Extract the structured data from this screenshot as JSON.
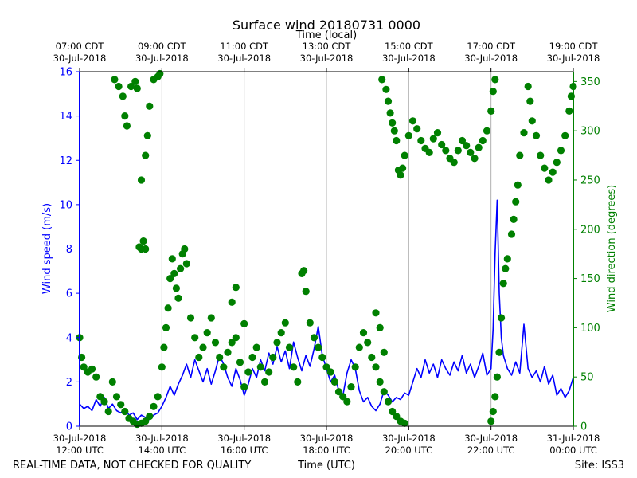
{
  "chart_data": {
    "type": "line+scatter",
    "title": "Surface wind 20180731 0000",
    "top_axis_label": "Time (local)",
    "x_label": "Time (UTC)",
    "footer_left": "REAL-TIME DATA, NOT CHECKED FOR QUALITY",
    "footer_right": "Site: ISS3",
    "x_range_hours": [
      0,
      12
    ],
    "bottom_ticks": [
      {
        "h": 0,
        "line1": "30-Jul-2018",
        "line2": "12:00 UTC"
      },
      {
        "h": 2,
        "line1": "30-Jul-2018",
        "line2": "14:00 UTC"
      },
      {
        "h": 4,
        "line1": "30-Jul-2018",
        "line2": "16:00 UTC"
      },
      {
        "h": 6,
        "line1": "30-Jul-2018",
        "line2": "18:00 UTC"
      },
      {
        "h": 8,
        "line1": "30-Jul-2018",
        "line2": "20:00 UTC"
      },
      {
        "h": 10,
        "line1": "30-Jul-2018",
        "line2": "22:00 UTC"
      },
      {
        "h": 12,
        "line1": "31-Jul-2018",
        "line2": "00:00 UTC"
      }
    ],
    "top_ticks": [
      {
        "h": 0,
        "line1": "07:00 CDT",
        "line2": "30-Jul-2018"
      },
      {
        "h": 2,
        "line1": "09:00 CDT",
        "line2": "30-Jul-2018"
      },
      {
        "h": 4,
        "line1": "11:00 CDT",
        "line2": "30-Jul-2018"
      },
      {
        "h": 6,
        "line1": "13:00 CDT",
        "line2": "30-Jul-2018"
      },
      {
        "h": 8,
        "line1": "15:00 CDT",
        "line2": "30-Jul-2018"
      },
      {
        "h": 10,
        "line1": "17:00 CDT",
        "line2": "30-Jul-2018"
      },
      {
        "h": 12,
        "line1": "19:00 CDT",
        "line2": "30-Jul-2018"
      }
    ],
    "left_axis": {
      "label": "Wind speed (m/s)",
      "ylim": [
        0,
        16
      ],
      "ticks": [
        0,
        2,
        4,
        6,
        8,
        10,
        12,
        14,
        16
      ],
      "color": "#0000ff"
    },
    "right_axis": {
      "label": "Wind direction (degrees)",
      "ylim": [
        0,
        360
      ],
      "ticks": [
        0,
        50,
        100,
        150,
        200,
        250,
        300,
        350
      ],
      "color": "#008000"
    },
    "grid_x": true,
    "series": [
      {
        "name": "Wind speed",
        "axis": "left",
        "style": "line",
        "color": "#0000ff",
        "points": [
          [
            0.0,
            1.0
          ],
          [
            0.1,
            0.8
          ],
          [
            0.2,
            0.9
          ],
          [
            0.3,
            0.7
          ],
          [
            0.4,
            1.2
          ],
          [
            0.5,
            0.9
          ],
          [
            0.6,
            1.3
          ],
          [
            0.7,
            0.8
          ],
          [
            0.8,
            1.0
          ],
          [
            0.9,
            0.7
          ],
          [
            1.0,
            0.6
          ],
          [
            1.1,
            0.8
          ],
          [
            1.2,
            0.5
          ],
          [
            1.3,
            0.6
          ],
          [
            1.4,
            0.3
          ],
          [
            1.5,
            0.5
          ],
          [
            1.6,
            0.4
          ],
          [
            1.7,
            0.3
          ],
          [
            1.8,
            0.5
          ],
          [
            1.9,
            0.6
          ],
          [
            2.0,
            0.9
          ],
          [
            2.1,
            1.3
          ],
          [
            2.2,
            1.8
          ],
          [
            2.3,
            1.4
          ],
          [
            2.4,
            1.9
          ],
          [
            2.5,
            2.3
          ],
          [
            2.6,
            2.8
          ],
          [
            2.7,
            2.2
          ],
          [
            2.8,
            3.0
          ],
          [
            2.9,
            2.5
          ],
          [
            3.0,
            2.0
          ],
          [
            3.1,
            2.6
          ],
          [
            3.2,
            1.9
          ],
          [
            3.3,
            2.5
          ],
          [
            3.4,
            3.2
          ],
          [
            3.5,
            2.8
          ],
          [
            3.6,
            2.2
          ],
          [
            3.7,
            1.8
          ],
          [
            3.8,
            2.6
          ],
          [
            3.9,
            2.1
          ],
          [
            4.0,
            1.4
          ],
          [
            4.1,
            1.9
          ],
          [
            4.2,
            2.6
          ],
          [
            4.3,
            2.2
          ],
          [
            4.4,
            3.0
          ],
          [
            4.5,
            2.5
          ],
          [
            4.6,
            3.3
          ],
          [
            4.7,
            2.8
          ],
          [
            4.8,
            3.6
          ],
          [
            4.9,
            2.9
          ],
          [
            5.0,
            3.4
          ],
          [
            5.1,
            2.6
          ],
          [
            5.2,
            3.8
          ],
          [
            5.3,
            3.1
          ],
          [
            5.4,
            2.5
          ],
          [
            5.5,
            3.2
          ],
          [
            5.6,
            2.7
          ],
          [
            5.7,
            3.5
          ],
          [
            5.8,
            4.5
          ],
          [
            5.9,
            3.2
          ],
          [
            6.0,
            2.6
          ],
          [
            6.1,
            2.0
          ],
          [
            6.2,
            2.3
          ],
          [
            6.3,
            1.6
          ],
          [
            6.4,
            1.4
          ],
          [
            6.5,
            2.4
          ],
          [
            6.6,
            3.0
          ],
          [
            6.7,
            2.6
          ],
          [
            6.8,
            1.6
          ],
          [
            6.9,
            1.1
          ],
          [
            7.0,
            1.3
          ],
          [
            7.1,
            0.9
          ],
          [
            7.2,
            0.7
          ],
          [
            7.3,
            1.0
          ],
          [
            7.4,
            1.6
          ],
          [
            7.5,
            1.4
          ],
          [
            7.6,
            1.1
          ],
          [
            7.7,
            1.3
          ],
          [
            7.8,
            1.2
          ],
          [
            7.9,
            1.5
          ],
          [
            8.0,
            1.4
          ],
          [
            8.1,
            2.0
          ],
          [
            8.2,
            2.6
          ],
          [
            8.3,
            2.2
          ],
          [
            8.4,
            3.0
          ],
          [
            8.5,
            2.4
          ],
          [
            8.6,
            2.8
          ],
          [
            8.7,
            2.2
          ],
          [
            8.8,
            3.0
          ],
          [
            8.9,
            2.6
          ],
          [
            9.0,
            2.3
          ],
          [
            9.1,
            2.9
          ],
          [
            9.2,
            2.5
          ],
          [
            9.3,
            3.2
          ],
          [
            9.4,
            2.4
          ],
          [
            9.5,
            2.8
          ],
          [
            9.6,
            2.2
          ],
          [
            9.7,
            2.7
          ],
          [
            9.8,
            3.3
          ],
          [
            9.9,
            2.3
          ],
          [
            10.0,
            2.6
          ],
          [
            10.05,
            4.4
          ],
          [
            10.1,
            7.8
          ],
          [
            10.15,
            10.2
          ],
          [
            10.2,
            6.0
          ],
          [
            10.25,
            4.0
          ],
          [
            10.3,
            3.2
          ],
          [
            10.4,
            2.6
          ],
          [
            10.5,
            2.3
          ],
          [
            10.6,
            2.9
          ],
          [
            10.7,
            2.4
          ],
          [
            10.8,
            4.6
          ],
          [
            10.9,
            2.6
          ],
          [
            11.0,
            2.2
          ],
          [
            11.1,
            2.5
          ],
          [
            11.2,
            2.0
          ],
          [
            11.3,
            2.7
          ],
          [
            11.4,
            1.9
          ],
          [
            11.5,
            2.3
          ],
          [
            11.6,
            1.4
          ],
          [
            11.7,
            1.7
          ],
          [
            11.8,
            1.3
          ],
          [
            11.9,
            1.6
          ],
          [
            12.0,
            2.2
          ]
        ]
      },
      {
        "name": "Wind direction",
        "axis": "right",
        "style": "markers",
        "color": "#008000",
        "points": [
          [
            0.0,
            90
          ],
          [
            0.05,
            70
          ],
          [
            0.1,
            60
          ],
          [
            0.2,
            55
          ],
          [
            0.3,
            58
          ],
          [
            0.4,
            50
          ],
          [
            0.5,
            30
          ],
          [
            0.6,
            25
          ],
          [
            0.7,
            15
          ],
          [
            0.8,
            45
          ],
          [
            0.9,
            30
          ],
          [
            1.0,
            22
          ],
          [
            1.1,
            15
          ],
          [
            1.2,
            8
          ],
          [
            1.3,
            5
          ],
          [
            1.4,
            2
          ],
          [
            1.5,
            3
          ],
          [
            1.6,
            5
          ],
          [
            1.7,
            10
          ],
          [
            1.8,
            20
          ],
          [
            1.9,
            30
          ],
          [
            0.85,
            352
          ],
          [
            0.95,
            345
          ],
          [
            1.05,
            335
          ],
          [
            1.1,
            315
          ],
          [
            1.15,
            305
          ],
          [
            1.25,
            345
          ],
          [
            1.45,
            182
          ],
          [
            1.5,
            180
          ],
          [
            1.55,
            188
          ],
          [
            1.6,
            180
          ],
          [
            1.35,
            350
          ],
          [
            1.4,
            343
          ],
          [
            1.5,
            250
          ],
          [
            1.6,
            275
          ],
          [
            1.65,
            295
          ],
          [
            1.7,
            325
          ],
          [
            1.8,
            352
          ],
          [
            1.9,
            355
          ],
          [
            1.95,
            358
          ],
          [
            2.0,
            60
          ],
          [
            2.05,
            80
          ],
          [
            2.1,
            100
          ],
          [
            2.15,
            120
          ],
          [
            2.2,
            150
          ],
          [
            2.25,
            170
          ],
          [
            2.3,
            155
          ],
          [
            2.35,
            140
          ],
          [
            2.4,
            130
          ],
          [
            2.45,
            160
          ],
          [
            2.5,
            175
          ],
          [
            2.55,
            180
          ],
          [
            2.6,
            165
          ],
          [
            2.7,
            110
          ],
          [
            2.8,
            90
          ],
          [
            2.9,
            70
          ],
          [
            3.0,
            80
          ],
          [
            3.1,
            95
          ],
          [
            3.2,
            110
          ],
          [
            3.3,
            85
          ],
          [
            3.4,
            70
          ],
          [
            3.5,
            60
          ],
          [
            3.6,
            75
          ],
          [
            3.7,
            85
          ],
          [
            3.8,
            90
          ],
          [
            3.9,
            65
          ],
          [
            4.0,
            40
          ],
          [
            4.1,
            55
          ],
          [
            4.2,
            70
          ],
          [
            4.3,
            80
          ],
          [
            4.4,
            60
          ],
          [
            4.5,
            45
          ],
          [
            4.6,
            55
          ],
          [
            4.7,
            70
          ],
          [
            4.8,
            85
          ],
          [
            4.9,
            95
          ],
          [
            5.0,
            105
          ],
          [
            5.1,
            80
          ],
          [
            5.2,
            60
          ],
          [
            5.3,
            45
          ],
          [
            5.4,
            155
          ],
          [
            5.45,
            158
          ],
          [
            5.5,
            137
          ],
          [
            5.6,
            105
          ],
          [
            5.7,
            90
          ],
          [
            5.8,
            80
          ],
          [
            5.9,
            70
          ],
          [
            6.0,
            60
          ],
          [
            6.1,
            55
          ],
          [
            6.2,
            45
          ],
          [
            6.3,
            35
          ],
          [
            6.4,
            30
          ],
          [
            6.5,
            25
          ],
          [
            6.6,
            40
          ],
          [
            6.7,
            60
          ],
          [
            6.8,
            80
          ],
          [
            6.9,
            95
          ],
          [
            7.0,
            85
          ],
          [
            7.1,
            70
          ],
          [
            7.2,
            60
          ],
          [
            7.3,
            45
          ],
          [
            7.4,
            35
          ],
          [
            7.5,
            25
          ],
          [
            7.6,
            15
          ],
          [
            7.7,
            10
          ],
          [
            7.8,
            5
          ],
          [
            7.9,
            3
          ],
          [
            7.2,
            115
          ],
          [
            7.3,
            100
          ],
          [
            7.4,
            75
          ],
          [
            4.0,
            104
          ],
          [
            3.8,
            141
          ],
          [
            3.7,
            126
          ],
          [
            7.35,
            352
          ],
          [
            7.45,
            342
          ],
          [
            7.5,
            330
          ],
          [
            7.55,
            318
          ],
          [
            7.6,
            308
          ],
          [
            7.65,
            300
          ],
          [
            7.7,
            290
          ],
          [
            7.75,
            260
          ],
          [
            7.8,
            255
          ],
          [
            7.85,
            262
          ],
          [
            7.9,
            275
          ],
          [
            8.0,
            295
          ],
          [
            8.1,
            310
          ],
          [
            8.2,
            302
          ],
          [
            8.3,
            290
          ],
          [
            8.4,
            282
          ],
          [
            8.5,
            278
          ],
          [
            8.6,
            292
          ],
          [
            8.7,
            298
          ],
          [
            8.8,
            286
          ],
          [
            8.9,
            280
          ],
          [
            9.0,
            272
          ],
          [
            9.1,
            268
          ],
          [
            9.2,
            280
          ],
          [
            9.3,
            290
          ],
          [
            9.4,
            285
          ],
          [
            9.5,
            278
          ],
          [
            9.6,
            272
          ],
          [
            9.7,
            283
          ],
          [
            9.8,
            290
          ],
          [
            9.9,
            300
          ],
          [
            10.0,
            320
          ],
          [
            10.05,
            340
          ],
          [
            10.1,
            352
          ],
          [
            10.0,
            5
          ],
          [
            10.05,
            15
          ],
          [
            10.1,
            30
          ],
          [
            10.15,
            50
          ],
          [
            10.2,
            75
          ],
          [
            10.25,
            110
          ],
          [
            10.3,
            145
          ],
          [
            10.35,
            160
          ],
          [
            10.4,
            170
          ],
          [
            10.5,
            195
          ],
          [
            10.55,
            210
          ],
          [
            10.6,
            228
          ],
          [
            10.65,
            245
          ],
          [
            10.7,
            275
          ],
          [
            10.8,
            298
          ],
          [
            10.9,
            345
          ],
          [
            10.95,
            330
          ],
          [
            11.0,
            310
          ],
          [
            11.1,
            295
          ],
          [
            11.2,
            275
          ],
          [
            11.3,
            262
          ],
          [
            11.4,
            250
          ],
          [
            11.5,
            258
          ],
          [
            11.6,
            268
          ],
          [
            11.7,
            280
          ],
          [
            11.8,
            295
          ],
          [
            11.9,
            320
          ],
          [
            11.95,
            335
          ],
          [
            12.0,
            345
          ]
        ]
      }
    ]
  }
}
